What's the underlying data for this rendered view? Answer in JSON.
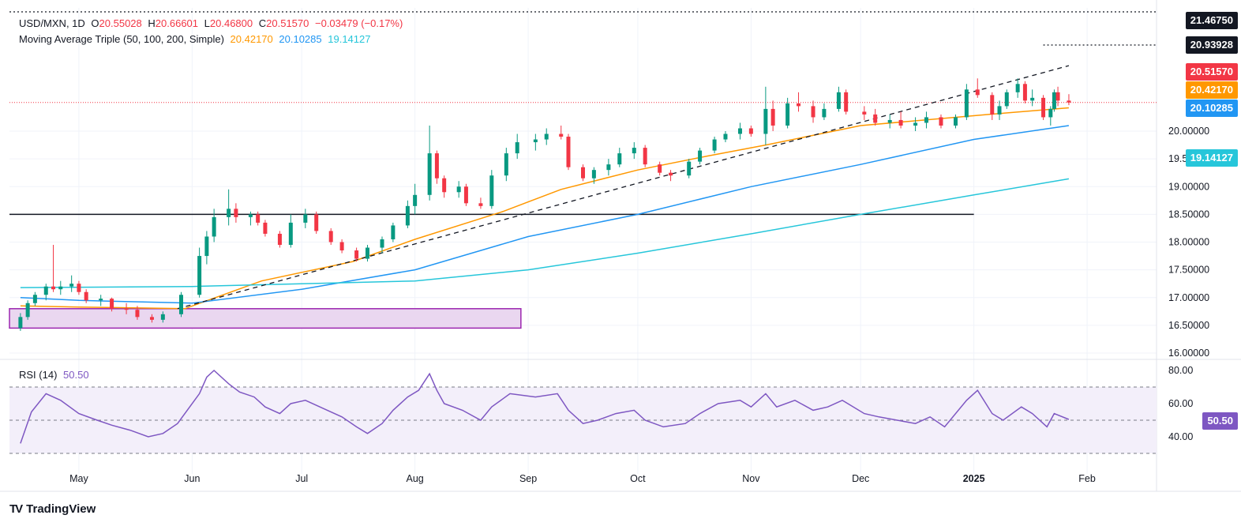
{
  "legend": {
    "symbol": "USD/MXN, 1D",
    "open_label": "O",
    "open": "20.55028",
    "high_label": "H",
    "high": "20.66601",
    "low_label": "L",
    "low": "20.46800",
    "close_label": "C",
    "close": "20.51570",
    "change": "−0.03479 (−0.17%)",
    "ma_label": "Moving Average Triple (50, 100, 200, Simple)",
    "ma50": "20.42170",
    "ma100": "20.10285",
    "ma200": "19.14127",
    "rsi_label": "RSI (14)",
    "rsi_value": "50.50"
  },
  "colors": {
    "up": "#089981",
    "down": "#f23645",
    "ma50": "#ff9800",
    "ma100": "#2196f3",
    "ma200": "#26c6da",
    "rsi": "#7e57c2",
    "box_fill": "#ead7f0",
    "box_stroke": "#9c27b0",
    "trendline": "#131722"
  },
  "badges": {
    "max": "21.46750",
    "level": "20.93928",
    "price": "20.51570",
    "ma50": "20.42170",
    "ma100": "20.10285",
    "ma200": "19.14127",
    "rsi": "50.50"
  },
  "footer": {
    "brand": "TradingView"
  },
  "chart_data": {
    "type": "candlestick",
    "x_labels": [
      "May",
      "Jun",
      "Jul",
      "Aug",
      "Sep",
      "Oct",
      "Nov",
      "Dec",
      "2025",
      "Feb"
    ],
    "y_ticks": [
      "16.00000",
      "16.50000",
      "17.00000",
      "17.50000",
      "18.00000",
      "18.50000",
      "19.00000",
      "19.50000",
      "20.00000"
    ],
    "ylim": [
      15.9,
      21.5
    ],
    "horizontal_line": 18.5,
    "dotted_levels": [
      21.4675,
      20.93928
    ],
    "price_line": 20.5157,
    "support_zone": {
      "from": 16.45,
      "to": 16.8,
      "start": "2024-04-15",
      "end": "2024-08-30"
    },
    "trendline": [
      [
        "2024-05-28",
        16.8
      ],
      [
        "2025-01-27",
        21.18
      ]
    ],
    "series": [
      {
        "name": "Moving Average Triple (50, 100, 200, Simple) 50",
        "points": [
          [
            "2024-04-15",
            16.85
          ],
          [
            "2024-05-01",
            16.83
          ],
          [
            "2024-05-30",
            16.8
          ],
          [
            "2024-06-20",
            17.3
          ],
          [
            "2024-07-15",
            17.65
          ],
          [
            "2024-08-01",
            18.05
          ],
          [
            "2024-08-25",
            18.55
          ],
          [
            "2024-09-10",
            18.95
          ],
          [
            "2024-10-01",
            19.3
          ],
          [
            "2024-10-20",
            19.55
          ],
          [
            "2024-11-05",
            19.75
          ],
          [
            "2024-12-01",
            20.1
          ],
          [
            "2025-01-05",
            20.3
          ],
          [
            "2025-01-27",
            20.42
          ]
        ]
      },
      {
        "name": "Moving Average Triple (50, 100, 200, Simple) 100",
        "points": [
          [
            "2024-04-15",
            17.0
          ],
          [
            "2024-05-01",
            16.95
          ],
          [
            "2024-06-01",
            16.9
          ],
          [
            "2024-07-01",
            17.15
          ],
          [
            "2024-08-01",
            17.5
          ],
          [
            "2024-09-01",
            18.1
          ],
          [
            "2024-10-01",
            18.5
          ],
          [
            "2024-11-01",
            19.0
          ],
          [
            "2024-12-01",
            19.4
          ],
          [
            "2025-01-01",
            19.85
          ],
          [
            "2025-01-27",
            20.1
          ]
        ]
      },
      {
        "name": "Moving Average Triple (50, 100, 200, Simple) 200",
        "points": [
          [
            "2024-04-15",
            17.18
          ],
          [
            "2024-06-01",
            17.2
          ],
          [
            "2024-07-01",
            17.25
          ],
          [
            "2024-08-01",
            17.3
          ],
          [
            "2024-09-01",
            17.5
          ],
          [
            "2024-10-01",
            17.8
          ],
          [
            "2024-11-01",
            18.15
          ],
          [
            "2024-12-01",
            18.5
          ],
          [
            "2025-01-01",
            18.85
          ],
          [
            "2025-01-27",
            19.14
          ]
        ]
      }
    ],
    "candles": [
      [
        "2024-04-15",
        16.45,
        16.72,
        16.4,
        16.65
      ],
      [
        "2024-04-17",
        16.65,
        16.95,
        16.6,
        16.9
      ],
      [
        "2024-04-19",
        16.9,
        17.1,
        16.85,
        17.05
      ],
      [
        "2024-04-22",
        17.05,
        17.25,
        16.95,
        17.2
      ],
      [
        "2024-04-24",
        17.2,
        17.95,
        17.1,
        17.15
      ],
      [
        "2024-04-26",
        17.15,
        17.3,
        17.05,
        17.2
      ],
      [
        "2024-04-29",
        17.2,
        17.4,
        17.1,
        17.25
      ],
      [
        "2024-05-01",
        17.25,
        17.3,
        17.05,
        17.1
      ],
      [
        "2024-05-03",
        17.1,
        17.15,
        16.9,
        16.95
      ],
      [
        "2024-05-07",
        16.95,
        17.05,
        16.85,
        16.98
      ],
      [
        "2024-05-10",
        16.98,
        17.0,
        16.75,
        16.8
      ],
      [
        "2024-05-14",
        16.8,
        16.9,
        16.7,
        16.78
      ],
      [
        "2024-05-17",
        16.78,
        16.85,
        16.6,
        16.65
      ],
      [
        "2024-05-21",
        16.65,
        16.7,
        16.55,
        16.6
      ],
      [
        "2024-05-24",
        16.6,
        16.75,
        16.55,
        16.7
      ],
      [
        "2024-05-29",
        16.7,
        17.1,
        16.65,
        17.05
      ],
      [
        "2024-06-03",
        17.05,
        17.9,
        17.0,
        17.75
      ],
      [
        "2024-06-05",
        17.75,
        18.2,
        17.6,
        18.1
      ],
      [
        "2024-06-07",
        18.1,
        18.6,
        18.0,
        18.45
      ],
      [
        "2024-06-11",
        18.45,
        18.95,
        18.3,
        18.6
      ],
      [
        "2024-06-13",
        18.6,
        18.7,
        18.35,
        18.45
      ],
      [
        "2024-06-17",
        18.45,
        18.55,
        18.3,
        18.5
      ],
      [
        "2024-06-19",
        18.5,
        18.55,
        18.3,
        18.35
      ],
      [
        "2024-06-21",
        18.35,
        18.4,
        18.1,
        18.15
      ],
      [
        "2024-06-25",
        18.15,
        18.2,
        17.9,
        17.95
      ],
      [
        "2024-06-28",
        17.95,
        18.5,
        17.9,
        18.35
      ],
      [
        "2024-07-02",
        18.35,
        18.6,
        18.25,
        18.5
      ],
      [
        "2024-07-05",
        18.5,
        18.55,
        18.15,
        18.2
      ],
      [
        "2024-07-09",
        18.2,
        18.25,
        17.95,
        18.0
      ],
      [
        "2024-07-12",
        18.0,
        18.05,
        17.8,
        17.85
      ],
      [
        "2024-07-16",
        17.85,
        17.9,
        17.65,
        17.7
      ],
      [
        "2024-07-19",
        17.7,
        17.95,
        17.65,
        17.9
      ],
      [
        "2024-07-23",
        17.9,
        18.1,
        17.8,
        18.05
      ],
      [
        "2024-07-26",
        18.05,
        18.35,
        18.0,
        18.3
      ],
      [
        "2024-07-30",
        18.3,
        18.75,
        18.25,
        18.65
      ],
      [
        "2024-08-01",
        18.65,
        19.05,
        18.5,
        18.85
      ],
      [
        "2024-08-05",
        18.85,
        20.1,
        18.75,
        19.6
      ],
      [
        "2024-08-07",
        19.6,
        19.65,
        19.05,
        19.15
      ],
      [
        "2024-08-09",
        19.15,
        19.2,
        18.8,
        18.9
      ],
      [
        "2024-08-13",
        18.9,
        19.1,
        18.8,
        19.0
      ],
      [
        "2024-08-15",
        19.0,
        19.05,
        18.65,
        18.7
      ],
      [
        "2024-08-19",
        18.7,
        18.8,
        18.6,
        18.65
      ],
      [
        "2024-08-22",
        18.65,
        19.3,
        18.6,
        19.2
      ],
      [
        "2024-08-26",
        19.2,
        19.7,
        19.1,
        19.6
      ],
      [
        "2024-08-29",
        19.6,
        19.95,
        19.5,
        19.8
      ],
      [
        "2024-09-03",
        19.8,
        19.95,
        19.65,
        19.85
      ],
      [
        "2024-09-06",
        19.85,
        20.05,
        19.75,
        19.95
      ],
      [
        "2024-09-10",
        19.95,
        20.1,
        19.85,
        19.9
      ],
      [
        "2024-09-12",
        19.9,
        19.95,
        19.3,
        19.35
      ],
      [
        "2024-09-16",
        19.35,
        19.4,
        19.1,
        19.15
      ],
      [
        "2024-09-19",
        19.15,
        19.35,
        19.05,
        19.3
      ],
      [
        "2024-09-23",
        19.3,
        19.5,
        19.2,
        19.4
      ],
      [
        "2024-09-26",
        19.4,
        19.7,
        19.35,
        19.6
      ],
      [
        "2024-09-30",
        19.6,
        19.8,
        19.5,
        19.7
      ],
      [
        "2024-10-03",
        19.7,
        19.75,
        19.35,
        19.4
      ],
      [
        "2024-10-07",
        19.4,
        19.45,
        19.2,
        19.25
      ],
      [
        "2024-10-10",
        19.25,
        19.3,
        19.1,
        19.2
      ],
      [
        "2024-10-15",
        19.2,
        19.5,
        19.15,
        19.45
      ],
      [
        "2024-10-18",
        19.45,
        19.7,
        19.4,
        19.65
      ],
      [
        "2024-10-22",
        19.65,
        19.9,
        19.6,
        19.85
      ],
      [
        "2024-10-25",
        19.85,
        20.0,
        19.8,
        19.95
      ],
      [
        "2024-10-29",
        19.95,
        20.15,
        19.85,
        20.05
      ],
      [
        "2024-11-01",
        20.05,
        20.1,
        19.9,
        19.95
      ],
      [
        "2024-11-05",
        19.95,
        20.8,
        19.75,
        20.4
      ],
      [
        "2024-11-07",
        20.4,
        20.55,
        20.0,
        20.1
      ],
      [
        "2024-11-11",
        20.1,
        20.6,
        20.05,
        20.5
      ],
      [
        "2024-11-14",
        20.5,
        20.7,
        20.35,
        20.45
      ],
      [
        "2024-11-18",
        20.45,
        20.55,
        20.15,
        20.25
      ],
      [
        "2024-11-21",
        20.25,
        20.5,
        20.2,
        20.4
      ],
      [
        "2024-11-25",
        20.4,
        20.8,
        20.35,
        20.7
      ],
      [
        "2024-11-27",
        20.7,
        20.75,
        20.3,
        20.35
      ],
      [
        "2024-12-02",
        20.35,
        20.45,
        20.2,
        20.3
      ],
      [
        "2024-12-05",
        20.3,
        20.4,
        20.1,
        20.15
      ],
      [
        "2024-12-09",
        20.15,
        20.3,
        20.05,
        20.2
      ],
      [
        "2024-12-12",
        20.2,
        20.35,
        20.05,
        20.1
      ],
      [
        "2024-12-16",
        20.1,
        20.25,
        20.0,
        20.15
      ],
      [
        "2024-12-19",
        20.15,
        20.35,
        20.05,
        20.25
      ],
      [
        "2024-12-23",
        20.25,
        20.3,
        20.05,
        20.1
      ],
      [
        "2024-12-27",
        20.1,
        20.3,
        20.05,
        20.25
      ],
      [
        "2024-12-30",
        20.25,
        20.85,
        20.2,
        20.75
      ],
      [
        "2025-01-02",
        20.75,
        20.95,
        20.6,
        20.65
      ],
      [
        "2025-01-06",
        20.65,
        20.7,
        20.2,
        20.3
      ],
      [
        "2025-01-08",
        20.3,
        20.55,
        20.2,
        20.45
      ],
      [
        "2025-01-10",
        20.45,
        20.75,
        20.4,
        20.7
      ],
      [
        "2025-01-13",
        20.7,
        20.95,
        20.6,
        20.85
      ],
      [
        "2025-01-15",
        20.85,
        20.9,
        20.5,
        20.55
      ],
      [
        "2025-01-17",
        20.55,
        20.75,
        20.45,
        20.6
      ],
      [
        "2025-01-20",
        20.6,
        20.65,
        20.2,
        20.25
      ],
      [
        "2025-01-22",
        20.25,
        20.45,
        20.1,
        20.4
      ],
      [
        "2025-01-23",
        20.4,
        20.75,
        20.35,
        20.7
      ],
      [
        "2025-01-24",
        20.7,
        20.8,
        20.45,
        20.55
      ],
      [
        "2025-01-27",
        20.55,
        20.666,
        20.468,
        20.5157
      ]
    ],
    "rsi": {
      "name": "RSI (14)",
      "ylim": [
        30,
        82
      ],
      "y_ticks": [
        "40.00",
        "60.00",
        "80.00"
      ],
      "bands": [
        30,
        70
      ],
      "mid": 50,
      "points": [
        [
          "2024-04-15",
          36
        ],
        [
          "2024-04-18",
          55
        ],
        [
          "2024-04-22",
          66
        ],
        [
          "2024-04-26",
          62
        ],
        [
          "2024-05-01",
          54
        ],
        [
          "2024-05-06",
          50
        ],
        [
          "2024-05-10",
          47
        ],
        [
          "2024-05-15",
          44
        ],
        [
          "2024-05-20",
          40
        ],
        [
          "2024-05-24",
          42
        ],
        [
          "2024-05-28",
          48
        ],
        [
          "2024-06-03",
          66
        ],
        [
          "2024-06-05",
          76
        ],
        [
          "2024-06-07",
          80
        ],
        [
          "2024-06-11",
          72
        ],
        [
          "2024-06-14",
          67
        ],
        [
          "2024-06-18",
          64
        ],
        [
          "2024-06-21",
          58
        ],
        [
          "2024-06-25",
          54
        ],
        [
          "2024-06-28",
          60
        ],
        [
          "2024-07-02",
          62
        ],
        [
          "2024-07-08",
          56
        ],
        [
          "2024-07-12",
          52
        ],
        [
          "2024-07-16",
          46
        ],
        [
          "2024-07-19",
          42
        ],
        [
          "2024-07-23",
          48
        ],
        [
          "2024-07-26",
          56
        ],
        [
          "2024-07-30",
          64
        ],
        [
          "2024-08-02",
          68
        ],
        [
          "2024-08-05",
          78
        ],
        [
          "2024-08-07",
          68
        ],
        [
          "2024-08-09",
          60
        ],
        [
          "2024-08-14",
          56
        ],
        [
          "2024-08-19",
          50
        ],
        [
          "2024-08-22",
          58
        ],
        [
          "2024-08-27",
          66
        ],
        [
          "2024-09-03",
          64
        ],
        [
          "2024-09-09",
          66
        ],
        [
          "2024-09-12",
          56
        ],
        [
          "2024-09-16",
          48
        ],
        [
          "2024-09-20",
          50
        ],
        [
          "2024-09-25",
          54
        ],
        [
          "2024-09-30",
          56
        ],
        [
          "2024-10-03",
          50
        ],
        [
          "2024-10-08",
          46
        ],
        [
          "2024-10-14",
          48
        ],
        [
          "2024-10-18",
          54
        ],
        [
          "2024-10-23",
          60
        ],
        [
          "2024-10-29",
          62
        ],
        [
          "2024-11-01",
          58
        ],
        [
          "2024-11-05",
          66
        ],
        [
          "2024-11-08",
          58
        ],
        [
          "2024-11-13",
          62
        ],
        [
          "2024-11-18",
          56
        ],
        [
          "2024-11-22",
          58
        ],
        [
          "2024-11-26",
          62
        ],
        [
          "2024-12-02",
          54
        ],
        [
          "2024-12-06",
          52
        ],
        [
          "2024-12-11",
          50
        ],
        [
          "2024-12-16",
          48
        ],
        [
          "2024-12-20",
          52
        ],
        [
          "2024-12-24",
          46
        ],
        [
          "2024-12-30",
          62
        ],
        [
          "2025-01-02",
          68
        ],
        [
          "2025-01-06",
          54
        ],
        [
          "2025-01-09",
          50
        ],
        [
          "2025-01-14",
          58
        ],
        [
          "2025-01-17",
          54
        ],
        [
          "2025-01-21",
          46
        ],
        [
          "2025-01-23",
          54
        ],
        [
          "2025-01-27",
          50.5
        ]
      ]
    }
  }
}
